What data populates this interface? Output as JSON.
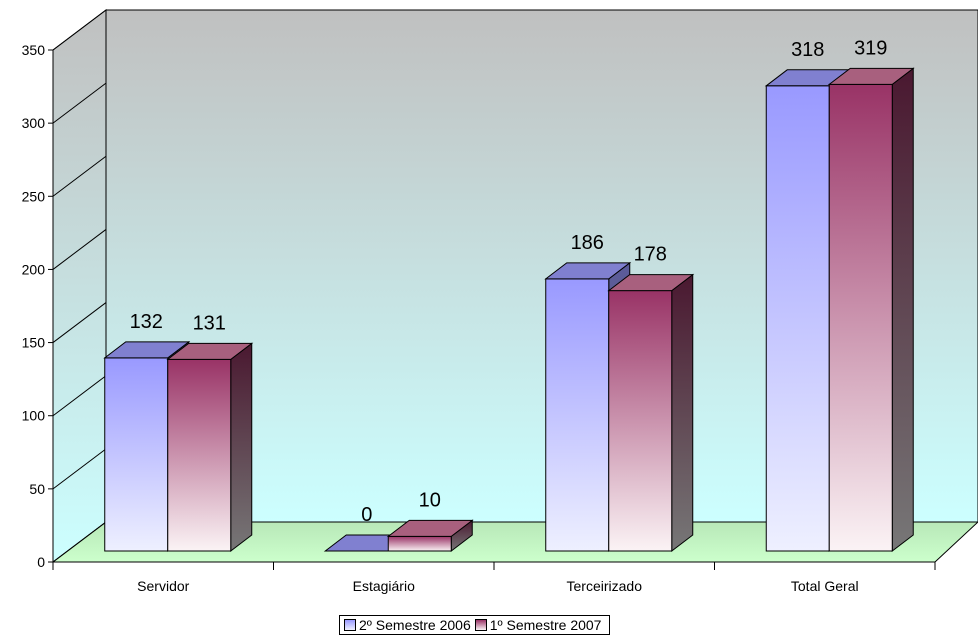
{
  "chart_data": {
    "type": "bar",
    "categories": [
      "Servidor",
      "Estagiário",
      "Terceirizado",
      "Total Geral"
    ],
    "series": [
      {
        "name": "2º Semestre 2006",
        "values": [
          132,
          0,
          186,
          318
        ]
      },
      {
        "name": "1º Semestre 2007",
        "values": [
          131,
          10,
          178,
          319
        ]
      }
    ],
    "data_labels": [
      [
        "132",
        "0",
        "186",
        "318"
      ],
      [
        "131",
        "10",
        "178",
        "319"
      ]
    ],
    "y_ticks": [
      "0",
      "50",
      "100",
      "150",
      "200",
      "250",
      "300",
      "350"
    ],
    "ylim": [
      0,
      350
    ],
    "legend_placement": "bottom",
    "colors": {
      "series1_top": "#9999ff",
      "series1_bottom": "#eef0ff",
      "series2_top": "#993366",
      "series2_bottom": "#fbf3f5",
      "wall_top": "#c0c0c0",
      "wall_bottom": "#ccffff",
      "floor": "#ccffcc"
    }
  }
}
